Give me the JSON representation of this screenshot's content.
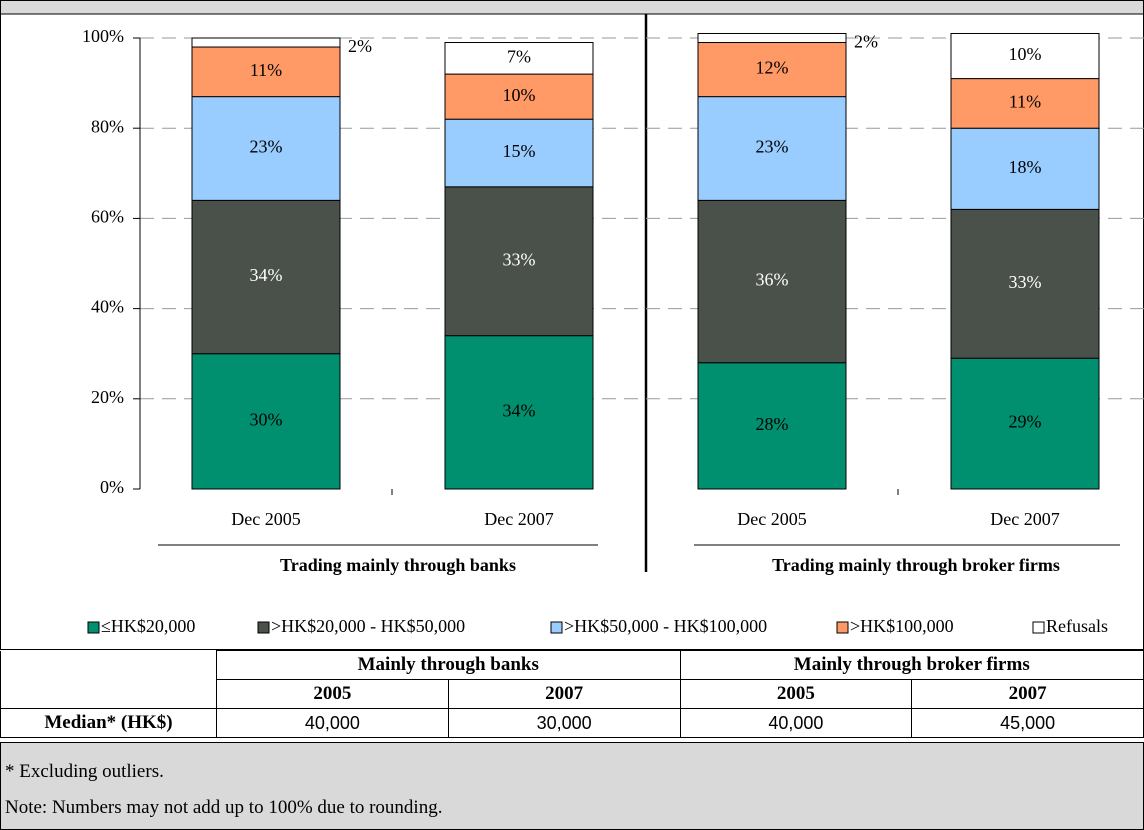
{
  "chart_data": {
    "type": "stacked_bar",
    "categories": [
      "Dec 2005",
      "Dec 2007",
      "Dec 2005",
      "Dec 2007"
    ],
    "groups": [
      "Trading mainly through banks",
      "Trading mainly through broker firms"
    ],
    "series": [
      {
        "name": "≤HK$20,000",
        "color": "#009070",
        "values": [
          30,
          34,
          28,
          29
        ],
        "value_labels": [
          "30%",
          "34%",
          "28%",
          "29%"
        ]
      },
      {
        "name": ">HK$20,000 - HK$50,000",
        "color": "#4a504a",
        "values": [
          34,
          33,
          36,
          33
        ],
        "value_labels": [
          "34%",
          "33%",
          "36%",
          "33%"
        ]
      },
      {
        "name": ">HK$50,000 - HK$100,000",
        "color": "#99ccff",
        "values": [
          23,
          15,
          23,
          18
        ],
        "value_labels": [
          "23%",
          "15%",
          "23%",
          "18%"
        ]
      },
      {
        "name": ">HK$100,000",
        "color": "#ff9966",
        "values": [
          11,
          10,
          12,
          11
        ],
        "value_labels": [
          "11%",
          "10%",
          "12%",
          "11%"
        ]
      },
      {
        "name": "Refusals",
        "color": "#ffffff",
        "values": [
          2,
          7,
          2,
          10
        ],
        "value_labels": [
          "2%",
          "7%",
          "2%",
          "10%"
        ]
      }
    ],
    "ylim": [
      0,
      100
    ],
    "yticks": [
      {
        "value": 0,
        "label": "0%"
      },
      {
        "value": 20,
        "label": "20%"
      },
      {
        "value": 40,
        "label": "40%"
      },
      {
        "value": 60,
        "label": "60%"
      },
      {
        "value": 80,
        "label": "80%"
      },
      {
        "value": 100,
        "label": "100%"
      }
    ],
    "grid": true,
    "legend": "bottom"
  },
  "table": {
    "groups": [
      "Mainly through banks",
      "Mainly through broker firms"
    ],
    "years": [
      "2005",
      "2007",
      "2005",
      "2007"
    ],
    "row_label": "Median* (HK$)",
    "values": [
      "40,000",
      "30,000",
      "40,000",
      "45,000"
    ]
  },
  "footnotes": [
    "* Excluding outliers.",
    "Note: Numbers may not add up to 100% due to rounding."
  ]
}
